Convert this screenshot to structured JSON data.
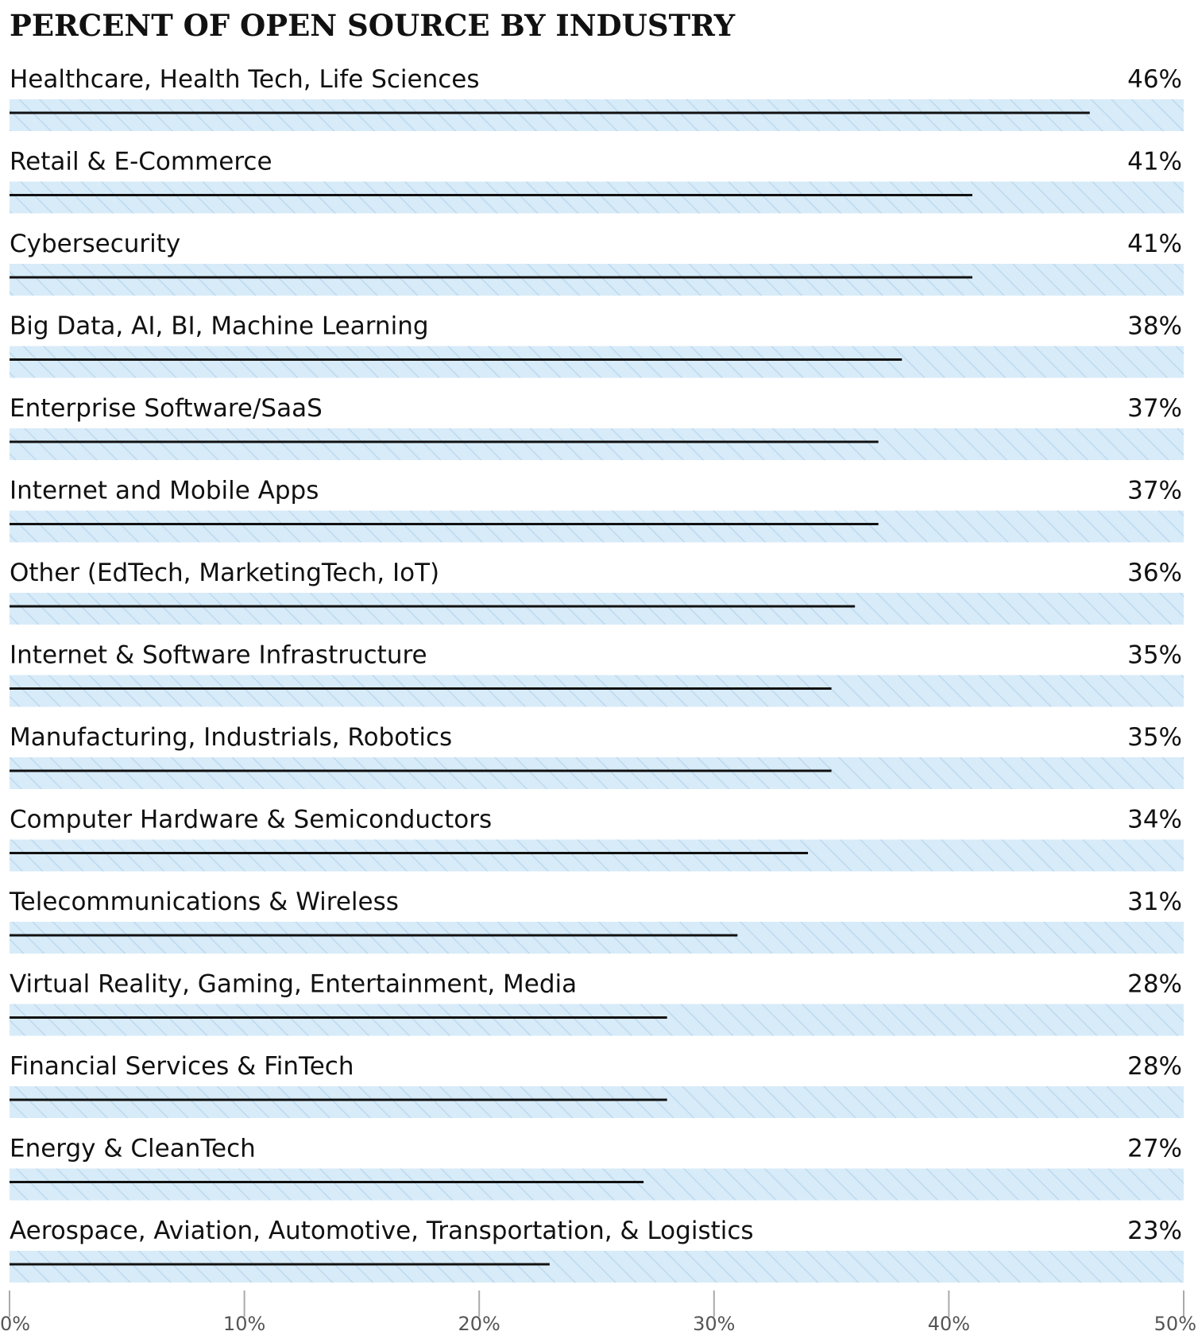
{
  "chart_data": {
    "type": "bar",
    "orientation": "horizontal",
    "title": "PERCENT OF OPEN SOURCE BY INDUSTRY",
    "categories": [
      "Healthcare, Health Tech, Life Sciences",
      "Retail & E-Commerce",
      "Cybersecurity",
      "Big Data, AI, BI, Machine Learning",
      "Enterprise Software/SaaS",
      "Internet and Mobile Apps",
      "Other (EdTech, MarketingTech, IoT)",
      "Internet & Software Infrastructure",
      "Manufacturing, Industrials, Robotics",
      "Computer Hardware & Semiconductors",
      "Telecommunications & Wireless",
      "Virtual Reality, Gaming, Entertainment, Media",
      "Financial Services & FinTech",
      "Energy & CleanTech",
      "Aerospace, Aviation, Automotive, Transportation, & Logistics"
    ],
    "values": [
      46,
      41,
      41,
      38,
      37,
      37,
      36,
      35,
      35,
      34,
      31,
      28,
      28,
      27,
      23
    ],
    "value_labels": [
      "46%",
      "41%",
      "41%",
      "38%",
      "37%",
      "37%",
      "36%",
      "35%",
      "35%",
      "34%",
      "31%",
      "28%",
      "28%",
      "27%",
      "23%"
    ],
    "xlim": [
      0,
      50
    ],
    "x_ticks": [
      0,
      10,
      20,
      30,
      40,
      50
    ],
    "x_tick_labels": [
      "0%",
      "10%",
      "20%",
      "30%",
      "40%",
      "50%"
    ],
    "xlabel": "",
    "ylabel": "",
    "grid": false,
    "colors": {
      "bar_line": "#111111",
      "track_fill": "#d8ebf8",
      "track_stripe": "#bcdaf0",
      "axis": "#aaaaaa"
    }
  }
}
